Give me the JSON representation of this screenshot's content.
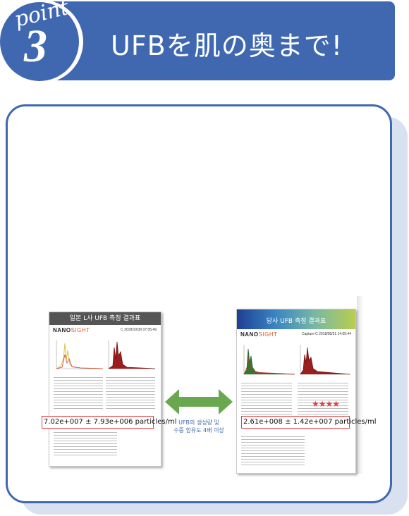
{
  "header": {
    "point_word": "point",
    "point_number": "3",
    "title": "UFBを肌の奥まで!"
  },
  "left_report": {
    "heading": "일본 L사 UFB 측정 결과표",
    "logo_main": "NANO",
    "logo_accent": "SIGHT",
    "capture_label": "C 2018/10/30 07:05:49",
    "result": "7.02e+007 ± 7.93e+006 particles/ml"
  },
  "right_report": {
    "heading": "당사 UFB 측정 결과표",
    "logo_main": "NANO",
    "logo_accent": "SIGHT",
    "capture_label": "Capture C 2018/08/21 14:05:44",
    "result": "2.61e+008 ± 1.42e+007 particles/ml",
    "stars": "★★★★"
  },
  "comparison": {
    "caption_line1": "UFB의 생성량 및",
    "caption_line2": "수중 함유도 4배 이상"
  },
  "colors": {
    "brand_blue": "#3f68b0",
    "arrow_green": "#6aa84f",
    "highlight_red": "#e24040"
  }
}
